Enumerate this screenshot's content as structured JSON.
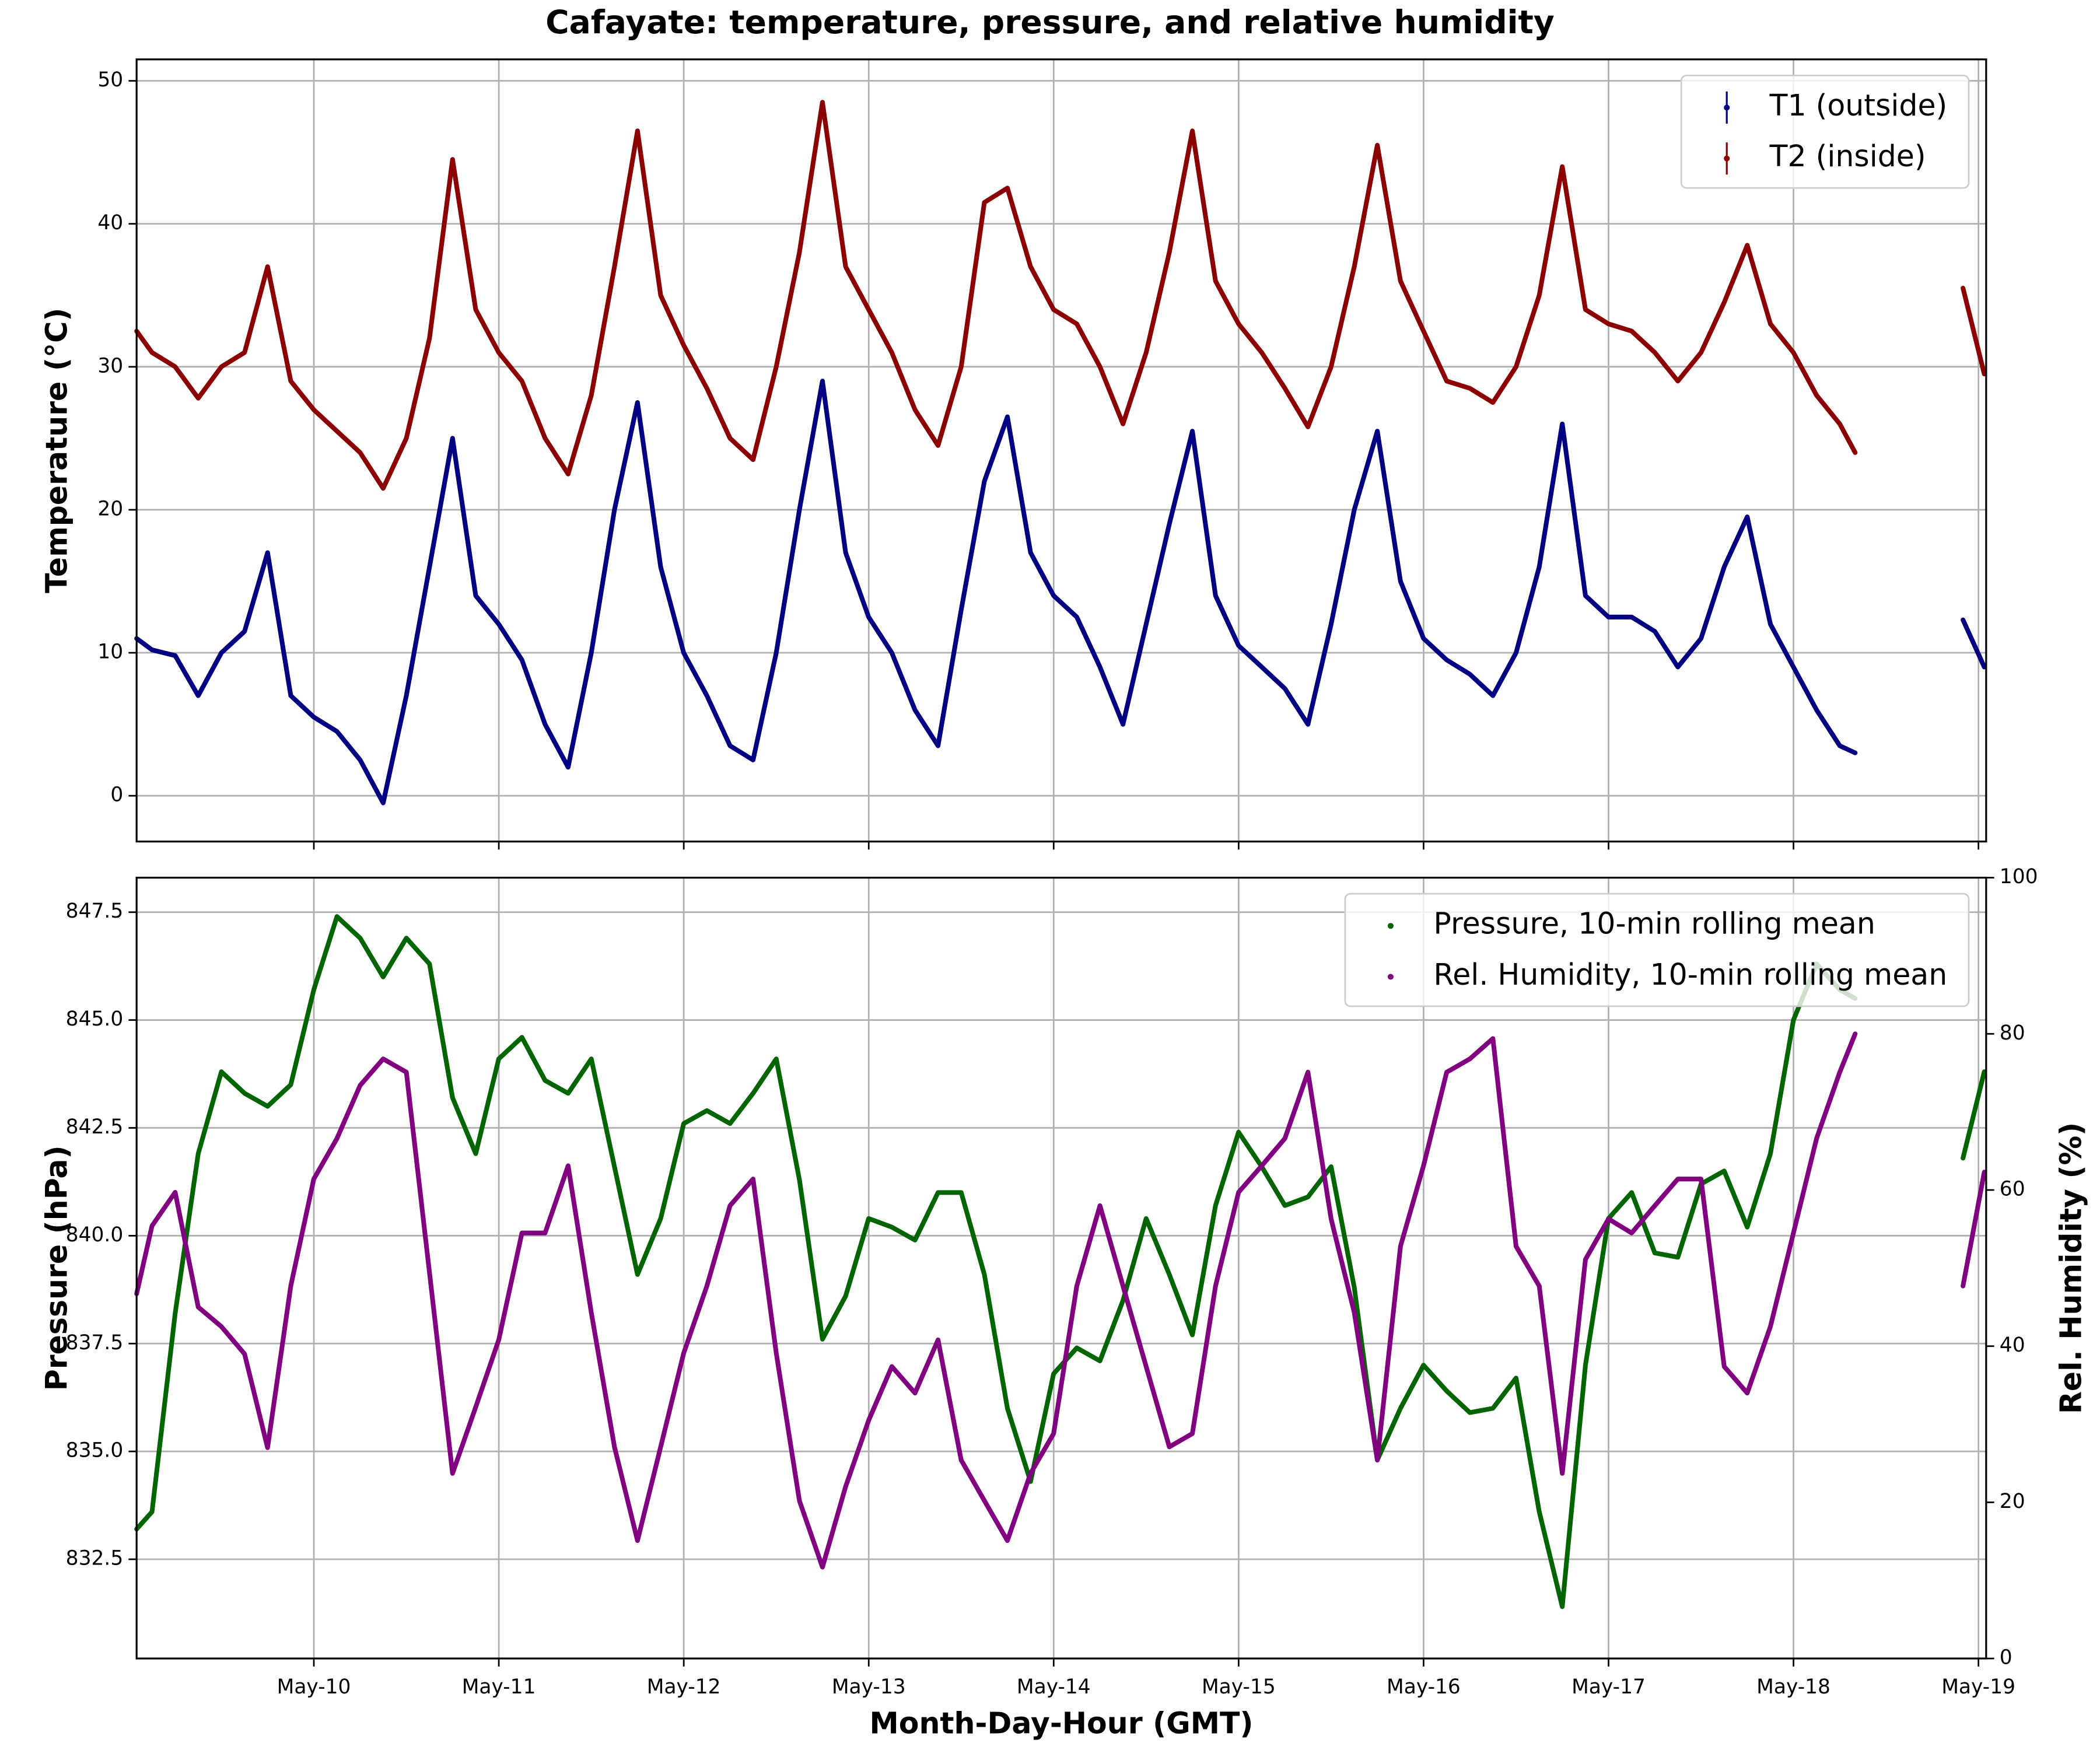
{
  "chart_data": [
    {
      "type": "line",
      "title": "Cafayate: temperature, pressure, and relative humidity",
      "ylabel": "Temperature (°C)",
      "legend": "upper right",
      "grid": true,
      "xlim": [
        "May-09 01:00",
        "May-19 01:00"
      ],
      "xticks": [
        "May-10",
        "May-11",
        "May-12",
        "May-13",
        "May-14",
        "May-15",
        "May-16",
        "May-17",
        "May-18",
        "May-19"
      ],
      "ylim": [
        -3.2,
        51.5
      ],
      "yticks": [
        0,
        10,
        20,
        30,
        40,
        50
      ],
      "x": [
        "May-09 01:00",
        "May-09 03:00",
        "May-09 06:00",
        "May-09 09:00",
        "May-09 12:00",
        "May-09 15:00",
        "May-09 18:00",
        "May-09 21:00",
        "May-10 00:00",
        "May-10 03:00",
        "May-10 06:00",
        "May-10 09:00",
        "May-10 12:00",
        "May-10 15:00",
        "May-10 18:00",
        "May-10 21:00",
        "May-11 00:00",
        "May-11 03:00",
        "May-11 06:00",
        "May-11 09:00",
        "May-11 12:00",
        "May-11 15:00",
        "May-11 18:00",
        "May-11 21:00",
        "May-12 00:00",
        "May-12 03:00",
        "May-12 06:00",
        "May-12 09:00",
        "May-12 12:00",
        "May-12 15:00",
        "May-12 18:00",
        "May-12 21:00",
        "May-13 00:00",
        "May-13 03:00",
        "May-13 06:00",
        "May-13 09:00",
        "May-13 12:00",
        "May-13 15:00",
        "May-13 18:00",
        "May-13 21:00",
        "May-14 00:00",
        "May-14 03:00",
        "May-14 06:00",
        "May-14 09:00",
        "May-14 12:00",
        "May-14 15:00",
        "May-14 18:00",
        "May-14 21:00",
        "May-15 00:00",
        "May-15 03:00",
        "May-15 06:00",
        "May-15 09:00",
        "May-15 12:00",
        "May-15 15:00",
        "May-15 18:00",
        "May-15 21:00",
        "May-16 00:00",
        "May-16 03:00",
        "May-16 06:00",
        "May-16 09:00",
        "May-16 12:00",
        "May-16 15:00",
        "May-16 18:00",
        "May-16 21:00",
        "May-17 00:00",
        "May-17 03:00",
        "May-17 06:00",
        "May-17 09:00",
        "May-17 12:00",
        "May-17 15:00",
        "May-17 18:00",
        "May-17 21:00",
        "May-18 00:00",
        "May-18 03:00",
        "May-18 06:00",
        "May-18 08:00",
        "May-18 15:00",
        "May-18 22:00",
        "May-19 00:45"
      ],
      "series": [
        {
          "name": "T1 (outside)",
          "color": "#000080",
          "values": [
            11,
            10.2,
            9.8,
            7,
            10,
            11.5,
            17,
            7,
            5.5,
            4.5,
            2.5,
            -0.5,
            7,
            16,
            25,
            14,
            12,
            9.5,
            5,
            2,
            10,
            20,
            27.5,
            16,
            10,
            7,
            3.5,
            2.5,
            10,
            20,
            29,
            17,
            12.5,
            10,
            6,
            3.5,
            13,
            22,
            26.5,
            17,
            14,
            12.5,
            9,
            5,
            12,
            19,
            25.5,
            14,
            10.5,
            9,
            7.5,
            5,
            12,
            20,
            25.5,
            15,
            11,
            9.5,
            8.5,
            7,
            10,
            16,
            26,
            14,
            12.5,
            12.5,
            11.5,
            9,
            11,
            16,
            19.5,
            12,
            9,
            6,
            3.5,
            3,
            null,
            12.3,
            9
          ]
        },
        {
          "name": "T2 (inside)",
          "color": "#8b0000",
          "values": [
            32.5,
            31,
            30,
            27.8,
            30,
            31,
            37,
            29,
            27,
            25.5,
            24,
            21.5,
            25,
            32,
            44.5,
            34,
            31,
            29,
            25,
            22.5,
            28,
            37,
            46.5,
            35,
            31.5,
            28.5,
            25,
            23.5,
            30,
            38,
            48.5,
            37,
            34,
            31,
            27,
            24.5,
            30,
            41.5,
            42.5,
            37,
            34,
            33,
            30,
            26,
            31,
            38,
            46.5,
            36,
            33,
            31,
            28.5,
            25.8,
            30,
            37,
            45.5,
            36,
            32.5,
            29,
            28.5,
            27.5,
            30,
            35,
            44,
            34,
            33,
            32.5,
            31,
            29,
            31,
            34.5,
            38.5,
            33,
            31,
            28,
            26,
            24,
            null,
            35.5,
            29.5
          ]
        }
      ]
    },
    {
      "type": "line",
      "xlabel": "Month-Day-Hour (GMT)",
      "ylabel": "Pressure (hPa)",
      "y2label": "Rel. Humidity (%)",
      "legend": "upper right",
      "grid": true,
      "xlim": [
        "May-09 01:00",
        "May-19 01:00"
      ],
      "xticks": [
        "May-10",
        "May-11",
        "May-12",
        "May-13",
        "May-14",
        "May-15",
        "May-16",
        "May-17",
        "May-18",
        "May-19"
      ],
      "ylim": [
        830.2,
        848.3
      ],
      "yticks": [
        832.5,
        {
          "value": 835,
          "label": "835.0"
        },
        837.5,
        {
          "value": 840,
          "label": "840.0"
        },
        842.5,
        {
          "value": 845,
          "label": "845.0"
        },
        847.5
      ],
      "y2lim": [
        0,
        100
      ],
      "y2ticks": [
        0,
        20,
        40,
        60,
        80,
        100
      ],
      "x": [
        "May-09 01:00",
        "May-09 03:00",
        "May-09 06:00",
        "May-09 09:00",
        "May-09 12:00",
        "May-09 15:00",
        "May-09 18:00",
        "May-09 21:00",
        "May-10 00:00",
        "May-10 03:00",
        "May-10 06:00",
        "May-10 09:00",
        "May-10 12:00",
        "May-10 15:00",
        "May-10 18:00",
        "May-10 21:00",
        "May-11 00:00",
        "May-11 03:00",
        "May-11 06:00",
        "May-11 09:00",
        "May-11 12:00",
        "May-11 15:00",
        "May-11 18:00",
        "May-11 21:00",
        "May-12 00:00",
        "May-12 03:00",
        "May-12 06:00",
        "May-12 09:00",
        "May-12 12:00",
        "May-12 15:00",
        "May-12 18:00",
        "May-12 21:00",
        "May-13 00:00",
        "May-13 03:00",
        "May-13 06:00",
        "May-13 09:00",
        "May-13 12:00",
        "May-13 15:00",
        "May-13 18:00",
        "May-13 21:00",
        "May-14 00:00",
        "May-14 03:00",
        "May-14 06:00",
        "May-14 09:00",
        "May-14 12:00",
        "May-14 15:00",
        "May-14 18:00",
        "May-14 21:00",
        "May-15 00:00",
        "May-15 03:00",
        "May-15 06:00",
        "May-15 09:00",
        "May-15 12:00",
        "May-15 15:00",
        "May-15 18:00",
        "May-15 21:00",
        "May-16 00:00",
        "May-16 03:00",
        "May-16 06:00",
        "May-16 09:00",
        "May-16 12:00",
        "May-16 15:00",
        "May-16 18:00",
        "May-16 21:00",
        "May-17 00:00",
        "May-17 03:00",
        "May-17 06:00",
        "May-17 09:00",
        "May-17 12:00",
        "May-17 15:00",
        "May-17 18:00",
        "May-17 21:00",
        "May-18 00:00",
        "May-18 03:00",
        "May-18 06:00",
        "May-18 08:00",
        "May-18 15:00",
        "May-18 22:00",
        "May-19 00:45"
      ],
      "series": [
        {
          "name": "Pressure, 10-min rolling mean",
          "color": "#006400",
          "values": [
            833.2,
            833.6,
            838.2,
            841.9,
            843.8,
            843.3,
            843.0,
            843.5,
            845.7,
            847.4,
            846.9,
            846.0,
            846.9,
            846.3,
            843.2,
            841.9,
            844.1,
            844.6,
            843.6,
            843.3,
            844.1,
            841.6,
            839.1,
            840.4,
            842.6,
            842.9,
            842.6,
            843.3,
            844.1,
            841.3,
            837.6,
            838.6,
            840.4,
            840.2,
            839.9,
            841.0,
            841.0,
            839.1,
            836.0,
            834.3,
            836.8,
            837.4,
            837.1,
            838.5,
            840.4,
            839.1,
            837.7,
            840.7,
            842.4,
            841.6,
            840.7,
            840.9,
            841.6,
            838.8,
            834.8,
            836.0,
            837.0,
            836.4,
            835.9,
            836.0,
            836.7,
            833.6,
            831.4,
            837.0,
            840.4,
            841.0,
            839.6,
            839.5,
            841.2,
            841.5,
            840.2,
            841.9,
            845.0,
            846.3,
            845.7,
            845.5,
            null,
            841.8,
            843.8
          ]
        },
        {
          "name": "Rel. Humidity, 10-min rolling mean",
          "color": "#800080",
          "axis": "y2",
          "values": [
            46.7,
            55.4,
            59.7,
            45,
            42.5,
            39,
            27,
            47.7,
            61.4,
            66.6,
            73.4,
            76.8,
            75.1,
            49.4,
            23.7,
            32.2,
            40.8,
            54.5,
            54.5,
            63.1,
            44.3,
            27.1,
            15.1,
            27.1,
            39.1,
            47.7,
            58,
            61.4,
            39.1,
            20.2,
            11.7,
            22,
            30.5,
            37.4,
            34,
            40.8,
            25.4,
            20.2,
            15.1,
            23.7,
            28.8,
            47.7,
            58,
            47.7,
            37.4,
            27.1,
            28.8,
            47.7,
            59.7,
            63.1,
            66.6,
            75.1,
            56.3,
            44.3,
            25.4,
            52.8,
            63.1,
            75.1,
            76.8,
            79.4,
            52.8,
            47.7,
            23.7,
            51.1,
            56.3,
            54.5,
            58,
            61.4,
            61.4,
            37.4,
            34,
            42.5,
            54.5,
            66.6,
            75.1,
            80,
            null,
            47.7,
            62.3
          ]
        }
      ]
    }
  ]
}
